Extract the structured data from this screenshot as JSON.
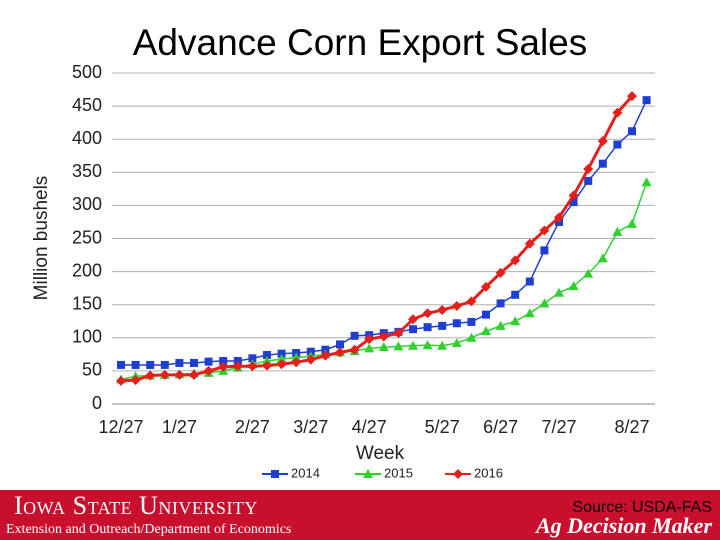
{
  "chart_data": {
    "type": "line",
    "title": "Advance Corn Export Sales",
    "xlabel": "Week",
    "ylabel": "Million bushels",
    "categories": [
      "12/27",
      null,
      null,
      null,
      "1/27",
      null,
      null,
      null,
      null,
      "2/27",
      null,
      null,
      null,
      "3/27",
      null,
      null,
      null,
      "4/27",
      null,
      null,
      null,
      null,
      "5/27",
      null,
      null,
      null,
      "6/27",
      null,
      null,
      null,
      "7/27",
      null,
      null,
      null,
      null,
      "8/27",
      null
    ],
    "series": [
      {
        "name": "2014",
        "color": "#1f3fd0",
        "marker": "square",
        "values": [
          59,
          59,
          59,
          59,
          62,
          62,
          64,
          65,
          65,
          69,
          74,
          76,
          77,
          79,
          82,
          90,
          103,
          104,
          107,
          109,
          113,
          116,
          118,
          122,
          124,
          135,
          152,
          165,
          185,
          232,
          275,
          305,
          337,
          363,
          392,
          412,
          459
        ]
      },
      {
        "name": "2015",
        "color": "#2fd12f",
        "marker": "triangle",
        "values": [
          37,
          42,
          43,
          44,
          45,
          46,
          47,
          50,
          55,
          60,
          65,
          68,
          70,
          72,
          75,
          78,
          80,
          84,
          86,
          87,
          88,
          89,
          88,
          92,
          100,
          110,
          118,
          125,
          137,
          152,
          168,
          178,
          197,
          220,
          260,
          272,
          335
        ]
      },
      {
        "name": "2016",
        "color": "#e3201b",
        "marker": "diamond",
        "values": [
          35,
          36,
          43,
          44,
          44,
          44,
          50,
          56,
          57,
          57,
          58,
          60,
          63,
          67,
          73,
          78,
          82,
          98,
          102,
          107,
          128,
          137,
          142,
          148,
          155,
          177,
          198,
          217,
          242,
          262,
          282,
          315,
          355,
          397,
          440,
          465,
          null
        ]
      }
    ],
    "ylim": [
      0,
      500
    ],
    "yticks": [
      0,
      50,
      100,
      150,
      200,
      250,
      300,
      350,
      400,
      450,
      500
    ],
    "grid": true,
    "legend": "bottom"
  },
  "footer": {
    "university": "Iowa State University",
    "department": "Extension and Outreach/Department of Economics",
    "source": "Source: USDA-FAS",
    "brand": "Ag Decision Maker"
  }
}
